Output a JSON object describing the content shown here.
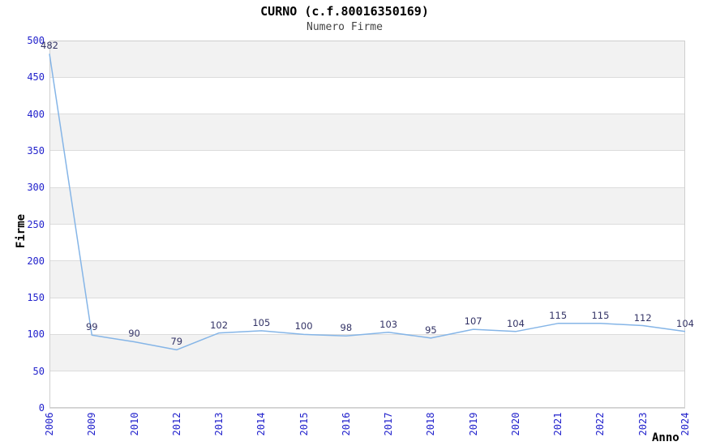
{
  "chart_data": {
    "type": "line",
    "title": "CURNO (c.f.80016350169)",
    "subtitle": "Numero Firme",
    "xlabel": "Anno",
    "ylabel": "Firme",
    "categories": [
      "2006",
      "2009",
      "2010",
      "2012",
      "2013",
      "2014",
      "2015",
      "2016",
      "2017",
      "2018",
      "2019",
      "2020",
      "2021",
      "2022",
      "2023",
      "2024"
    ],
    "values": [
      482,
      99,
      90,
      79,
      102,
      105,
      100,
      98,
      103,
      95,
      107,
      104,
      115,
      115,
      112,
      104
    ],
    "ylim": [
      0,
      500
    ],
    "ytick_step": 50,
    "yticks": [
      0,
      50,
      100,
      150,
      200,
      250,
      300,
      350,
      400,
      450,
      500
    ],
    "grid": true,
    "banded_background": true,
    "legend_position": "none",
    "colors": {
      "line": "#85b5e7",
      "tick_label": "#2222cc",
      "data_label": "#333366",
      "band": "#f2f2f2",
      "gridline": "#dcdcdc",
      "border": "#cfcfcf",
      "title": "#000000",
      "subtitle": "#444444",
      "axis_title": "#000000",
      "background": "#ffffff"
    }
  }
}
